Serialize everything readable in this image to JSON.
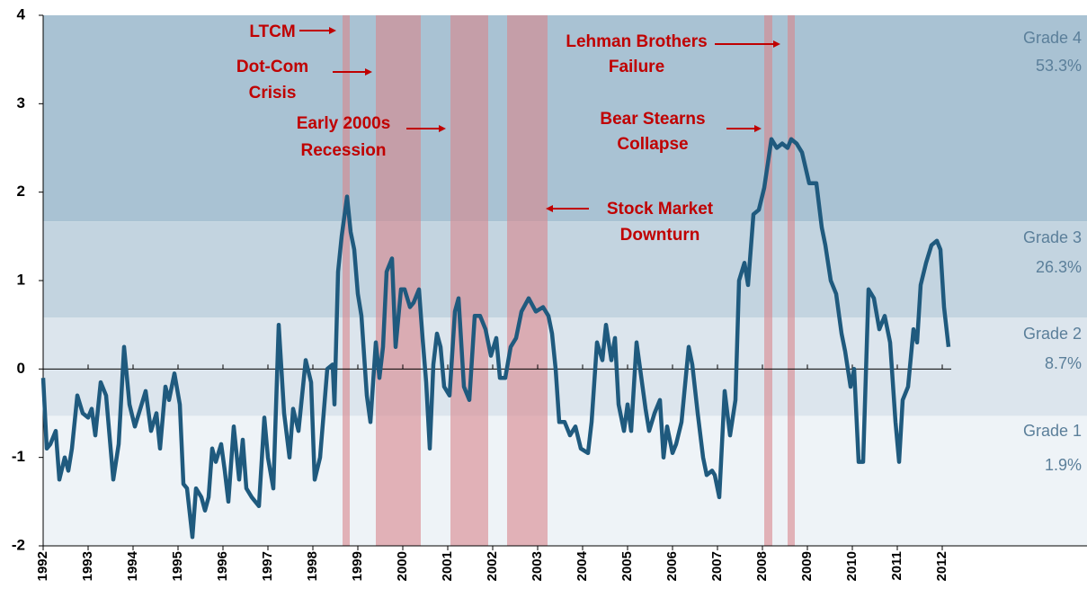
{
  "chart_data": {
    "type": "line",
    "xlim": [
      1992,
      2015.22
    ],
    "ylim": [
      -2,
      4
    ],
    "yticks": [
      -2,
      -1,
      0,
      1,
      2,
      3,
      4
    ],
    "xticks": [
      1992,
      1993,
      1994,
      1995,
      1996,
      1997,
      1998,
      1999,
      2000,
      2001,
      2002,
      2003,
      2004,
      2005,
      2006,
      2007,
      2008,
      2009,
      2010,
      2011,
      2012
    ],
    "grade_bands": [
      {
        "name": "Grade 4",
        "share": "53.3%",
        "lower": 1.67,
        "upper": 4,
        "color": "#a9c2d3"
      },
      {
        "name": "Grade 3",
        "share": "26.3%",
        "lower": 0.58,
        "upper": 1.67,
        "color": "#c3d4e0"
      },
      {
        "name": "Grade 2",
        "share": "8.7%",
        "lower": -0.53,
        "upper": 0.58,
        "color": "#dce5ed"
      },
      {
        "name": "Grade 1",
        "share": "1.9%",
        "lower": -2,
        "upper": -0.53,
        "color": "#eef3f7"
      }
    ],
    "shaded_periods": [
      {
        "start": 1998.66,
        "end": 1998.82
      },
      {
        "start": 1999.4,
        "end": 2000.4
      },
      {
        "start": 2001.06,
        "end": 2001.9
      },
      {
        "start": 2002.32,
        "end": 2003.22
      },
      {
        "start": 2008.04,
        "end": 2008.22
      },
      {
        "start": 2008.56,
        "end": 2008.72
      }
    ],
    "shade_color": "#d9858c",
    "annotations": [
      {
        "lines": [
          "LTCM"
        ]
      },
      {
        "lines": [
          "Dot-Com",
          "Crisis"
        ]
      },
      {
        "lines": [
          "Early 2000s",
          "Recession"
        ]
      },
      {
        "lines": [
          "Stock Market",
          "Downturn"
        ]
      },
      {
        "lines": [
          "Lehman Brothers",
          "Failure"
        ]
      },
      {
        "lines": [
          "Bear Stearns",
          "Collapse"
        ]
      }
    ],
    "series": [
      {
        "color": "#1f5a7e",
        "x": [
          1992.0,
          1992.08,
          1992.16,
          1992.28,
          1992.36,
          1992.48,
          1992.56,
          1992.64,
          1992.76,
          1992.88,
          1993.0,
          1993.08,
          1993.16,
          1993.28,
          1993.4,
          1993.56,
          1993.68,
          1993.8,
          1993.92,
          1994.04,
          1994.16,
          1994.28,
          1994.4,
          1994.52,
          1994.6,
          1994.72,
          1994.8,
          1994.92,
          1995.04,
          1995.12,
          1995.2,
          1995.32,
          1995.4,
          1995.52,
          1995.6,
          1995.68,
          1995.76,
          1995.84,
          1995.96,
          1996.04,
          1996.12,
          1996.24,
          1996.36,
          1996.44,
          1996.52,
          1996.64,
          1996.8,
          1996.92,
          1997.0,
          1997.12,
          1997.24,
          1997.36,
          1997.48,
          1997.56,
          1997.68,
          1997.84,
          1997.96,
          1998.04,
          1998.16,
          1998.32,
          1998.44,
          1998.48,
          1998.56,
          1998.64,
          1998.76,
          1998.84,
          1998.92,
          1999.0,
          1999.08,
          1999.2,
          1999.28,
          1999.4,
          1999.48,
          1999.56,
          1999.64,
          1999.76,
          1999.84,
          1999.96,
          2000.04,
          2000.16,
          2000.24,
          2000.36,
          2000.44,
          2000.52,
          2000.6,
          2000.68,
          2000.76,
          2000.84,
          2000.92,
          2001.04,
          2001.16,
          2001.24,
          2001.36,
          2001.48,
          2001.6,
          2001.72,
          2001.84,
          2001.96,
          2002.08,
          2002.16,
          2002.28,
          2002.4,
          2002.52,
          2002.64,
          2002.8,
          2002.96,
          2003.12,
          2003.24,
          2003.32,
          2003.4,
          2003.48,
          2003.6,
          2003.72,
          2003.84,
          2003.96,
          2004.12,
          2004.2,
          2004.32,
          2004.44,
          2004.52,
          2004.64,
          2004.72,
          2004.8,
          2004.92,
          2005.0,
          2005.08,
          2005.2,
          2005.32,
          2005.4,
          2005.48,
          2005.6,
          2005.72,
          2005.8,
          2005.88,
          2006.0,
          2006.08,
          2006.2,
          2006.36,
          2006.44,
          2006.56,
          2006.68,
          2006.76,
          2006.88,
          2006.94,
          2007.04,
          2007.16,
          2007.28,
          2007.4,
          2007.48,
          2007.6,
          2007.68,
          2007.8,
          2007.92,
          2008.04,
          2008.2,
          2008.32,
          2008.44,
          2008.56,
          2008.64,
          2008.76,
          2008.88,
          2009.04,
          2009.2,
          2009.32,
          2009.4,
          2009.52,
          2009.64,
          2009.76,
          2009.84,
          2009.96,
          2010.04,
          2010.14,
          2010.24,
          2010.36,
          2010.48,
          2010.6,
          2010.72,
          2010.84,
          2010.96,
          2011.04,
          2011.12,
          2011.24,
          2011.36,
          2011.44,
          2011.52,
          2011.64,
          2011.76,
          2011.88,
          2011.96,
          2012.04,
          2012.14
        ],
        "values": [
          -0.1,
          -0.9,
          -0.85,
          -0.7,
          -1.25,
          -1.0,
          -1.15,
          -0.9,
          -0.3,
          -0.5,
          -0.55,
          -0.45,
          -0.75,
          -0.15,
          -0.3,
          -1.25,
          -0.85,
          0.25,
          -0.4,
          -0.65,
          -0.45,
          -0.25,
          -0.7,
          -0.5,
          -0.9,
          -0.2,
          -0.35,
          -0.05,
          -0.4,
          -1.3,
          -1.35,
          -1.9,
          -1.35,
          -1.45,
          -1.6,
          -1.45,
          -0.9,
          -1.05,
          -0.85,
          -1.15,
          -1.5,
          -0.65,
          -1.25,
          -0.8,
          -1.35,
          -1.45,
          -1.55,
          -0.55,
          -1.0,
          -1.35,
          0.5,
          -0.5,
          -1.0,
          -0.45,
          -0.7,
          0.1,
          -0.15,
          -1.25,
          -1.0,
          0.0,
          0.05,
          -0.4,
          1.1,
          1.5,
          1.95,
          1.55,
          1.35,
          0.85,
          0.6,
          -0.3,
          -0.6,
          0.3,
          -0.1,
          0.25,
          1.1,
          1.25,
          0.25,
          0.9,
          0.9,
          0.7,
          0.75,
          0.9,
          0.35,
          -0.15,
          -0.9,
          0.05,
          0.4,
          0.25,
          -0.2,
          -0.3,
          0.65,
          0.8,
          -0.2,
          -0.35,
          0.6,
          0.6,
          0.45,
          0.15,
          0.35,
          -0.1,
          -0.1,
          0.25,
          0.35,
          0.65,
          0.8,
          0.65,
          0.7,
          0.6,
          0.4,
          0.0,
          -0.6,
          -0.6,
          -0.75,
          -0.65,
          -0.9,
          -0.95,
          -0.6,
          0.3,
          0.1,
          0.5,
          0.1,
          0.35,
          -0.4,
          -0.7,
          -0.4,
          -0.7,
          0.3,
          -0.15,
          -0.45,
          -0.7,
          -0.5,
          -0.35,
          -1.0,
          -0.65,
          -0.95,
          -0.85,
          -0.6,
          0.25,
          0.05,
          -0.5,
          -1.0,
          -1.2,
          -1.15,
          -1.2,
          -1.45,
          -0.25,
          -0.75,
          -0.35,
          1.0,
          1.2,
          0.95,
          1.75,
          1.8,
          2.05,
          2.6,
          2.5,
          2.55,
          2.5,
          2.6,
          2.55,
          2.45,
          2.1,
          2.1,
          1.6,
          1.4,
          1.0,
          0.85,
          0.4,
          0.2,
          -0.2,
          0.0,
          -1.05,
          -1.05,
          0.9,
          0.8,
          0.45,
          0.6,
          0.3,
          -0.6,
          -1.05,
          -0.35,
          -0.2,
          0.45,
          0.3,
          0.95,
          1.2,
          1.4,
          1.45,
          1.35,
          0.7,
          0.25
        ]
      }
    ]
  }
}
